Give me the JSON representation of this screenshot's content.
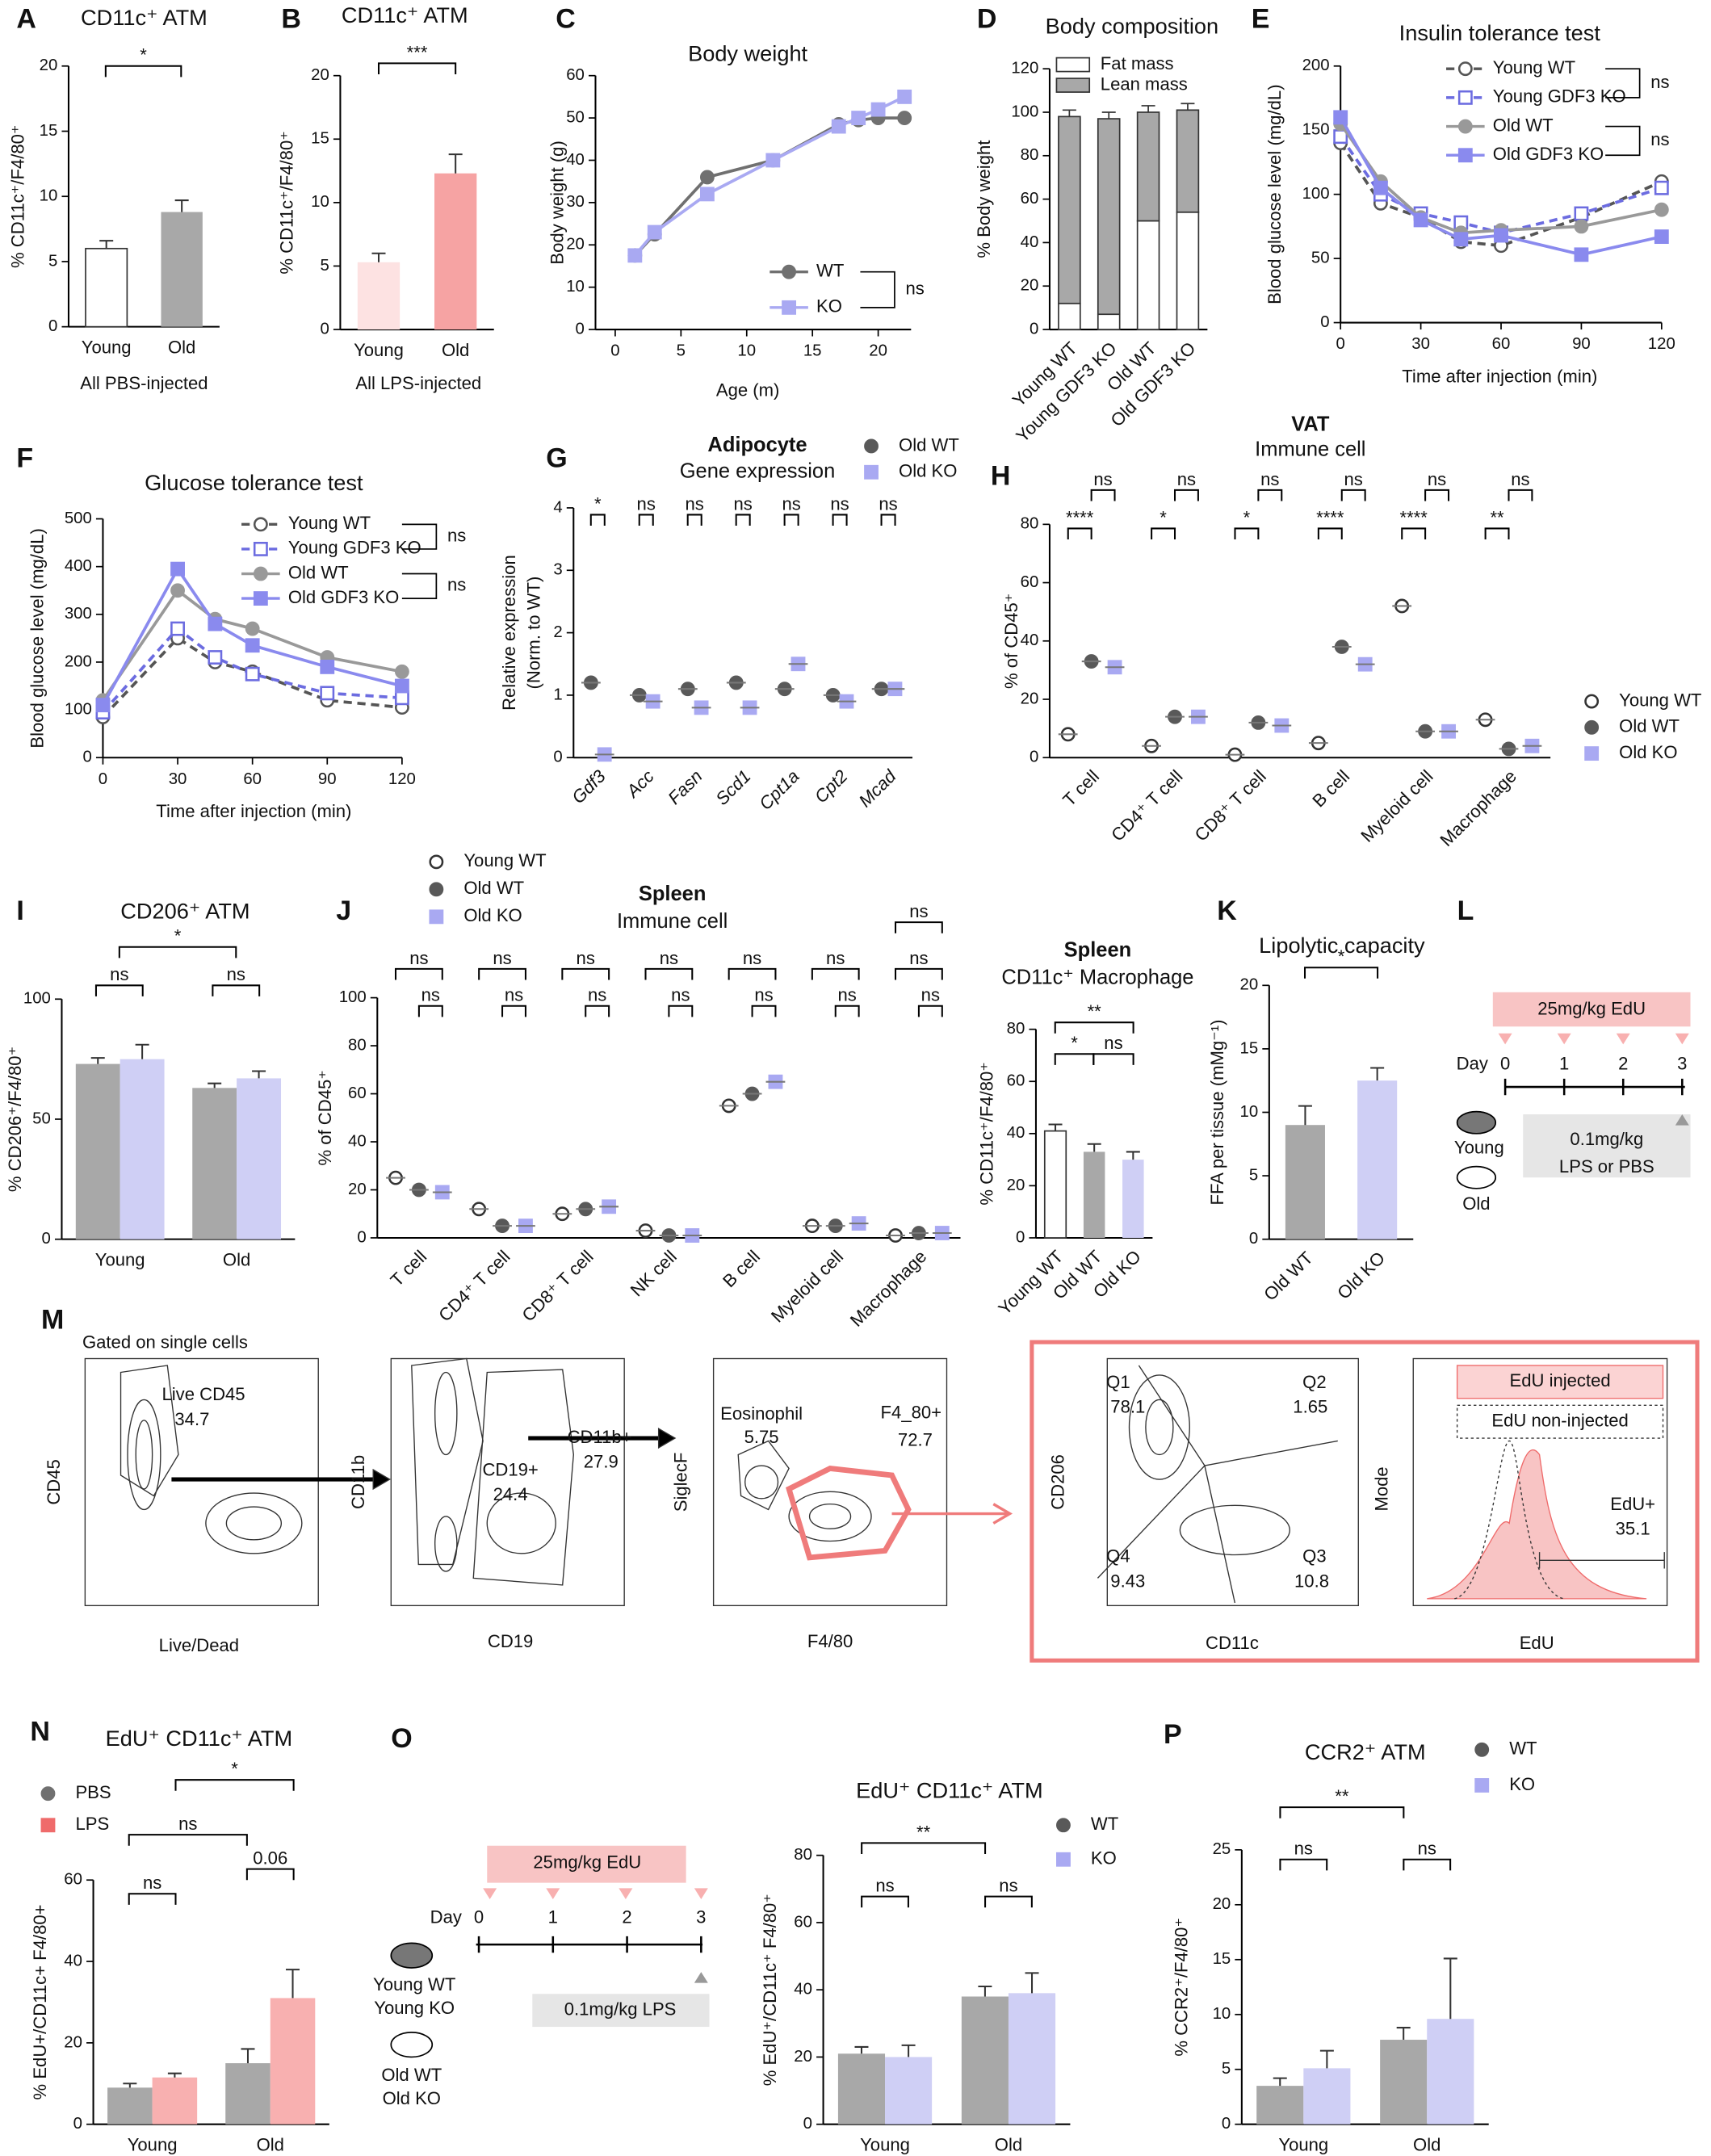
{
  "panel_labels": [
    "A",
    "B",
    "C",
    "D",
    "E",
    "F",
    "G",
    "H",
    "I",
    "J",
    "K",
    "L",
    "M",
    "N",
    "O",
    "P"
  ],
  "chart_data": [
    {
      "type": "bar",
      "title": "CD11c⁺ ATM",
      "ylabel": "% CD11c⁺/F4/80⁺",
      "xlabel": "All PBS-injected",
      "categories": [
        "Young",
        "Old"
      ],
      "values": [
        6,
        8.8
      ],
      "errors": [
        0.6,
        0.9
      ],
      "colors": [
        "#ffffff",
        "#a8a8a8"
      ],
      "ylim": [
        0,
        20
      ],
      "yticks": [
        0,
        5,
        10,
        15,
        20
      ],
      "annotations": [
        "*"
      ]
    },
    {
      "type": "bar",
      "title": "CD11c⁺ ATM",
      "ylabel": "% CD11c⁺/F4/80⁺",
      "xlabel": "All LPS-injected",
      "categories": [
        "Young",
        "Old"
      ],
      "values": [
        5.3,
        12.3
      ],
      "errors": [
        0.7,
        1.5
      ],
      "colors": [
        "#fde2e2",
        "#f6a3a3"
      ],
      "ylim": [
        0,
        20
      ],
      "yticks": [
        0,
        5,
        10,
        15,
        20
      ],
      "annotations": [
        "***"
      ]
    },
    {
      "type": "line",
      "title": "Body weight",
      "xlabel": "Age (m)",
      "ylabel": "Body weight (g)",
      "x": [
        1.5,
        3,
        7,
        12,
        17,
        18.5,
        20,
        22
      ],
      "series": [
        {
          "name": "WT",
          "color": "#707070",
          "marker": "circle",
          "values": [
            17.5,
            22.5,
            36,
            40,
            48.5,
            49.5,
            50,
            50
          ]
        },
        {
          "name": "KO",
          "color": "#a9a9f2",
          "marker": "square",
          "values": [
            17.5,
            23,
            32,
            40,
            48,
            50,
            52,
            55
          ]
        }
      ],
      "xlim": [
        -1.5,
        22.5
      ],
      "xticks": [
        0,
        5,
        10,
        15,
        20
      ],
      "ylim": [
        0,
        60
      ],
      "yticks": [
        0,
        10,
        20,
        30,
        40,
        50,
        60
      ],
      "legend_annotations": [
        "ns"
      ]
    },
    {
      "type": "stacked_bar",
      "title": "Body composition",
      "ylabel": "% Body weight",
      "categories": [
        "Young WT",
        "Young GDF3 KO",
        "Old WT",
        "Old GDF3 KO"
      ],
      "series": [
        {
          "name": "Fat mass",
          "color": "#ffffff",
          "values": [
            12,
            7,
            50,
            54
          ],
          "errors": [
            3,
            3,
            3,
            5
          ]
        },
        {
          "name": "Lean mass",
          "color": "#a8a8a8",
          "values": [
            86,
            90,
            50,
            47
          ],
          "errors": [
            3,
            3,
            3,
            3
          ]
        }
      ],
      "ylim": [
        0,
        120
      ],
      "yticks": [
        0,
        20,
        40,
        60,
        80,
        100,
        120
      ]
    },
    {
      "type": "line",
      "title": "Insulin tolerance test",
      "xlabel": "Time after injection (min)",
      "ylabel": "Blood glucose level (mg/dL)",
      "x": [
        0,
        15,
        30,
        45,
        60,
        90,
        120
      ],
      "series": [
        {
          "name": "Young WT",
          "color": "#555555",
          "marker": "circle",
          "open_marker": true,
          "dashed": true,
          "values": [
            140,
            93,
            82,
            63,
            60,
            82,
            110
          ]
        },
        {
          "name": "Young GDF3 KO",
          "color": "#6c6ce0",
          "marker": "square",
          "open_marker": true,
          "dashed": true,
          "values": [
            145,
            100,
            85,
            78,
            70,
            85,
            105
          ]
        },
        {
          "name": "Old WT",
          "color": "#999999",
          "marker": "circle",
          "values": [
            155,
            110,
            82,
            70,
            72,
            75,
            88
          ]
        },
        {
          "name": "Old GDF3 KO",
          "color": "#8a8aee",
          "marker": "square",
          "values": [
            160,
            105,
            80,
            65,
            68,
            53,
            67
          ]
        }
      ],
      "xlim": [
        0,
        120
      ],
      "xticks": [
        0,
        30,
        60,
        90,
        120
      ],
      "ylim": [
        0,
        200
      ],
      "yticks": [
        0,
        50,
        100,
        150,
        200
      ],
      "legend_annotations": [
        "ns",
        "ns"
      ]
    },
    {
      "type": "line",
      "title": "Glucose tolerance test",
      "xlabel": "Time after injection (min)",
      "ylabel": "Blood glucose level (mg/dL)",
      "x": [
        0,
        30,
        45,
        60,
        90,
        120
      ],
      "series": [
        {
          "name": "Young WT",
          "color": "#555555",
          "marker": "circle",
          "open_marker": true,
          "dashed": true,
          "values": [
            85,
            250,
            200,
            180,
            120,
            105
          ]
        },
        {
          "name": "Young GDF3 KO",
          "color": "#6c6ce0",
          "marker": "square",
          "open_marker": true,
          "dashed": true,
          "values": [
            95,
            270,
            210,
            175,
            135,
            125
          ]
        },
        {
          "name": "Old WT",
          "color": "#999999",
          "marker": "circle",
          "values": [
            120,
            350,
            290,
            270,
            210,
            180
          ]
        },
        {
          "name": "Old GDF3 KO",
          "color": "#8a8aee",
          "marker": "square",
          "values": [
            110,
            395,
            280,
            235,
            190,
            150
          ]
        }
      ],
      "xlim": [
        0,
        120
      ],
      "xticks": [
        0,
        30,
        60,
        90,
        120
      ],
      "ylim": [
        0,
        500
      ],
      "yticks": [
        0,
        100,
        200,
        300,
        400,
        500
      ],
      "legend_annotations": [
        "ns",
        "ns"
      ]
    },
    {
      "type": "dot",
      "title": "Adipocyte",
      "subtitle": "Gene expression",
      "ylabel": "Relative expression",
      "ylabel2": "(Norm. to WT)",
      "categories": [
        "Gdf3",
        "Acc",
        "Fasn",
        "Scd1",
        "Cpt1a",
        "Cpt2",
        "Mcad"
      ],
      "series": [
        {
          "name": "Old WT",
          "color": "#595959",
          "marker": "circle",
          "values": [
            1.2,
            1,
            1.1,
            1.2,
            1.1,
            1,
            1.1
          ]
        },
        {
          "name": "Old KO",
          "color": "#a9a9f2",
          "marker": "square",
          "values": [
            0.05,
            0.9,
            0.8,
            0.8,
            1.5,
            0.9,
            1.1
          ]
        }
      ],
      "ylim": [
        0,
        4
      ],
      "yticks": [
        0,
        1,
        2,
        3,
        4
      ],
      "annotations": [
        "*",
        "ns",
        "ns",
        "ns",
        "ns",
        "ns",
        "ns"
      ]
    },
    {
      "type": "dot",
      "title": "VAT",
      "subtitle": "Immune cell",
      "ylabel": "% of CD45⁺",
      "categories": [
        "T cell",
        "CD4⁺ T cell",
        "CD8⁺ T cell",
        "B cell",
        "Myeloid cell",
        "Macrophage"
      ],
      "series": [
        {
          "name": "Young WT",
          "color": "#333333",
          "marker": "circle",
          "open_marker": true,
          "values": [
            8,
            4,
            1,
            5,
            52,
            13
          ]
        },
        {
          "name": "Old WT",
          "color": "#595959",
          "marker": "circle",
          "values": [
            33,
            14,
            12,
            38,
            9,
            3
          ]
        },
        {
          "name": "Old KO",
          "color": "#a9a9f2",
          "marker": "square",
          "values": [
            31,
            14,
            11,
            32,
            9,
            4
          ]
        }
      ],
      "ylim": [
        0,
        80
      ],
      "yticks": [
        0,
        20,
        40,
        60,
        80
      ],
      "annotations": [
        "****",
        "ns",
        "*",
        "ns",
        "*",
        "ns",
        "****",
        "ns",
        "****",
        "ns",
        "**",
        "ns"
      ]
    },
    {
      "type": "bar",
      "title": "CD206⁺ ATM",
      "ylabel": "% CD206⁺/F4/80⁺",
      "categories": [
        "Young",
        "Old"
      ],
      "series": [
        {
          "color": "#a8a8a8",
          "values": [
            73,
            63
          ],
          "errors": [
            2.5,
            1.9
          ]
        },
        {
          "color": "#cfcff5",
          "values": [
            75,
            67
          ],
          "errors": [
            6,
            3
          ]
        }
      ],
      "ylim": [
        0,
        100
      ],
      "yticks": [
        0,
        50,
        100
      ],
      "annotations": [
        "*",
        "ns",
        "ns"
      ]
    },
    {
      "type": "dot",
      "title": "Spleen",
      "subtitle": "Immune cell",
      "ylabel": "% of CD45⁺",
      "categories": [
        "T cell",
        "CD4⁺ T cell",
        "CD8⁺ T cell",
        "NK cell",
        "B cell",
        "Myeloid cell",
        "Macrophage"
      ],
      "series": [
        {
          "name": "Young WT",
          "color": "#333333",
          "marker": "circle",
          "open_marker": true,
          "values": [
            25,
            12,
            10,
            3,
            55,
            5,
            1
          ]
        },
        {
          "name": "Old WT",
          "color": "#595959",
          "marker": "circle",
          "values": [
            20,
            5,
            12,
            1,
            60,
            5,
            2
          ]
        },
        {
          "name": "Old KO",
          "color": "#a9a9f2",
          "marker": "square",
          "values": [
            19,
            5,
            13,
            1,
            65,
            6,
            2
          ]
        }
      ],
      "ylim": [
        0,
        100
      ],
      "yticks": [
        0,
        20,
        40,
        60,
        80,
        100
      ],
      "annotations": [
        "ns",
        "ns",
        "ns",
        "ns",
        "ns",
        "ns",
        "ns",
        "ns",
        "ns",
        "ns",
        "ns",
        "ns",
        "ns",
        "ns",
        "ns"
      ]
    },
    {
      "type": "bar",
      "title": "Spleen",
      "subtitle": "CD11c⁺ Macrophage",
      "ylabel": "% CD11c⁺/F4/80⁺",
      "categories": [
        "Young WT",
        "Old WT",
        "Old KO"
      ],
      "values": [
        41,
        33,
        30
      ],
      "errors": [
        2.5,
        3,
        3
      ],
      "colors": [
        "#ffffff",
        "#a8a8a8",
        "#cfcff5"
      ],
      "ylim": [
        0,
        80
      ],
      "yticks": [
        0,
        20,
        40,
        60,
        80
      ],
      "annotations": [
        "**",
        "*",
        "ns"
      ]
    },
    {
      "type": "bar",
      "title": "Lipolytic capacity",
      "ylabel": "FFA per tissue (mMg⁻¹)",
      "categories": [
        "Old WT",
        "Old KO"
      ],
      "values": [
        9,
        12.5
      ],
      "errors": [
        1.5,
        1
      ],
      "colors": [
        "#a8a8a8",
        "#cfcff5"
      ],
      "ylim": [
        0,
        20
      ],
      "yticks": [
        0,
        5,
        10,
        15,
        20
      ],
      "annotations": [
        "*"
      ]
    },
    {
      "type": "bar",
      "title": "EdU⁺ CD11c⁺ ATM",
      "ylabel": "% EdU+/CD11c+ F4/80+",
      "categories": [
        "Young",
        "Old"
      ],
      "series": [
        {
          "name": "PBS",
          "color": "#a8a8a8",
          "marker": "circle",
          "marker_color": "#707070",
          "values": [
            9,
            15
          ],
          "errors": [
            1,
            3.5
          ]
        },
        {
          "name": "LPS",
          "color": "#f8b0b0",
          "marker": "square",
          "marker_color": "#ef6b6b",
          "values": [
            11.5,
            31
          ],
          "errors": [
            1,
            7
          ]
        }
      ],
      "ylim": [
        0,
        60
      ],
      "yticks": [
        0,
        20,
        40,
        60
      ],
      "annotations": [
        "*",
        "ns",
        "ns",
        "0.06"
      ]
    },
    {
      "type": "bar",
      "title": "EdU⁺ CD11c⁺ ATM",
      "ylabel": "% EdU⁺/CD11c⁺ F4/80⁺",
      "categories": [
        "Young",
        "Old"
      ],
      "series": [
        {
          "name": "WT",
          "color": "#a8a8a8",
          "marker": "circle",
          "marker_color": "#595959",
          "values": [
            21,
            38
          ],
          "errors": [
            2,
            3
          ]
        },
        {
          "name": "KO",
          "color": "#cfcff5",
          "marker": "square",
          "marker_color": "#a9a9f2",
          "values": [
            20,
            39
          ],
          "errors": [
            3.5,
            6
          ]
        }
      ],
      "ylim": [
        0,
        80
      ],
      "yticks": [
        0,
        20,
        40,
        60,
        80
      ],
      "annotations": [
        "**",
        "ns",
        "ns"
      ]
    },
    {
      "type": "bar",
      "title": "CCR2⁺ ATM",
      "ylabel": "% CCR2⁺/F4/80⁺",
      "categories": [
        "Young",
        "Old"
      ],
      "series": [
        {
          "name": "WT",
          "color": "#a8a8a8",
          "marker": "circle",
          "marker_color": "#595959",
          "values": [
            3.5,
            7.7
          ],
          "errors": [
            0.7,
            1.1
          ]
        },
        {
          "name": "KO",
          "color": "#cfcff5",
          "marker": "square",
          "marker_color": "#a9a9f2",
          "values": [
            5.1,
            9.6
          ],
          "errors": [
            1.6,
            5.5
          ]
        }
      ],
      "ylim": [
        0,
        25
      ],
      "yticks": [
        0,
        5,
        10,
        15,
        20,
        25
      ],
      "annotations": [
        "**",
        "ns",
        "ns"
      ]
    }
  ],
  "flow_cytometry": {
    "texts": [
      "Gated on single cells",
      "Live CD45",
      "34.7",
      "CD45",
      "Live/Dead",
      "CD11b",
      "CD19",
      "CD19+",
      "24.4",
      "CD11b+",
      "27.9",
      "SiglecF",
      "F4/80",
      "Eosinophil",
      "5.75",
      "F4_80+",
      "72.7",
      "CD206",
      "CD11c",
      "Q1",
      "78.1",
      "Q2",
      "1.65",
      "Q4",
      "9.43",
      "Q3",
      "10.8",
      "Mode",
      "EdU",
      "EdU injected",
      "EdU non-injected",
      "EdU+",
      "35.1"
    ]
  },
  "schematic_L": {
    "texts": [
      "25mg/kg EdU",
      "Day",
      "0",
      "1",
      "2",
      "3",
      "Young",
      "Old",
      "0.1mg/kg",
      "LPS or PBS"
    ]
  },
  "schematic_O": {
    "texts": [
      "25mg/kg EdU",
      "Day",
      "0",
      "1",
      "2",
      "3",
      "Young WT",
      "Young KO",
      "Old WT",
      "Old KO",
      "0.1mg/kg LPS"
    ]
  }
}
